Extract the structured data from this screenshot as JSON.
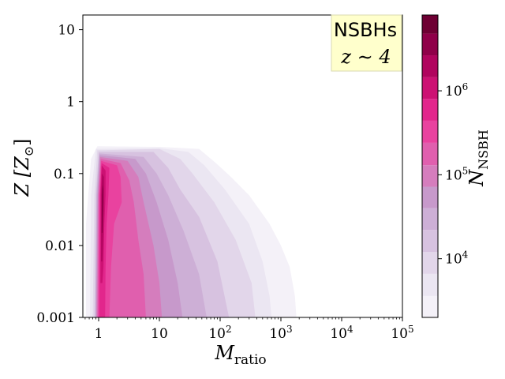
{
  "chart_data": {
    "type": "heatmap",
    "title": "",
    "xlabel": "M_ratio",
    "xlabel_base": "M",
    "xlabel_sub": "ratio",
    "ylabel": "Z [Z_⊙]",
    "ylabel_main": "Z [Z",
    "ylabel_sub": "⊙",
    "ylabel_close": "]",
    "xscale": "log",
    "yscale": "log",
    "xlim": [
      0.55,
      100000
    ],
    "ylim": [
      0.001,
      16
    ],
    "xticks": [
      {
        "value": 1,
        "label": "1"
      },
      {
        "value": 10,
        "label": "10"
      },
      {
        "value": 100,
        "label": "10^2",
        "base": "10",
        "exp": "2"
      },
      {
        "value": 1000,
        "label": "10^3",
        "base": "10",
        "exp": "3"
      },
      {
        "value": 10000,
        "label": "10^4",
        "base": "10",
        "exp": "4"
      },
      {
        "value": 100000,
        "label": "10^5",
        "base": "10",
        "exp": "5"
      }
    ],
    "yticks": [
      {
        "value": 10,
        "label": "10"
      },
      {
        "value": 1,
        "label": "1"
      },
      {
        "value": 0.1,
        "label": "0.1"
      },
      {
        "value": 0.01,
        "label": "0.01"
      },
      {
        "value": 0.001,
        "label": "0.001"
      }
    ],
    "annotation": {
      "line1": "NSBHs",
      "line2": "z ∼ 4"
    },
    "annotation_placement": "top-right",
    "grid": false,
    "colorbar": {
      "label": "N_NSBH",
      "label_base": "N",
      "label_sub": "NSBH",
      "scale": "log",
      "range": [
        2000,
        8000000
      ],
      "ticks": [
        {
          "value": 10000,
          "label": "10^4",
          "base": "10",
          "exp": "4"
        },
        {
          "value": 100000,
          "label": "10^5",
          "base": "10",
          "exp": "5"
        },
        {
          "value": 1000000,
          "label": "10^6",
          "base": "10",
          "exp": "6"
        }
      ],
      "levels": [
        {
          "value": 2000,
          "color": "#f4f1f8"
        },
        {
          "value": 3600,
          "color": "#ebe6f2"
        },
        {
          "value": 6600,
          "color": "#e2d6ea"
        },
        {
          "value": 12000,
          "color": "#d7c2e0"
        },
        {
          "value": 22000,
          "color": "#cdafd6"
        },
        {
          "value": 40000,
          "color": "#c799cb"
        },
        {
          "value": 72000,
          "color": "#d57dbd"
        },
        {
          "value": 130000,
          "color": "#e05fae"
        },
        {
          "value": 240000,
          "color": "#e9429f"
        },
        {
          "value": 440000,
          "color": "#e2268c"
        },
        {
          "value": 800000,
          "color": "#cc1173"
        },
        {
          "value": 1450000,
          "color": "#b0045e"
        },
        {
          "value": 2650000,
          "color": "#8f0049"
        },
        {
          "value": 4800000,
          "color": "#6e0033"
        }
      ]
    },
    "contours": [
      {
        "level": 0,
        "color": "#f4f1f8",
        "points": [
          [
            0.62,
            0.001
          ],
          [
            0.62,
            0.02
          ],
          [
            0.75,
            0.16
          ],
          [
            0.95,
            0.24
          ],
          [
            10,
            0.235
          ],
          [
            45,
            0.22
          ],
          [
            85,
            0.14
          ],
          [
            150,
            0.09
          ],
          [
            300,
            0.05
          ],
          [
            650,
            0.02
          ],
          [
            1000,
            0.01
          ],
          [
            1400,
            0.005
          ],
          [
            1700,
            0.002
          ],
          [
            1800,
            0.001
          ]
        ]
      },
      {
        "level": 1,
        "color": "#ebe6f2",
        "points": [
          [
            0.72,
            0.001
          ],
          [
            0.75,
            0.05
          ],
          [
            0.9,
            0.22
          ],
          [
            10,
            0.225
          ],
          [
            30,
            0.2
          ],
          [
            55,
            0.13
          ],
          [
            120,
            0.06
          ],
          [
            300,
            0.02
          ],
          [
            500,
            0.006
          ],
          [
            650,
            0.002
          ],
          [
            700,
            0.001
          ]
        ]
      },
      {
        "level": 2,
        "color": "#e2d6ea",
        "points": [
          [
            0.8,
            0.001
          ],
          [
            0.85,
            0.05
          ],
          [
            0.95,
            0.21
          ],
          [
            10,
            0.22
          ],
          [
            22,
            0.16
          ],
          [
            35,
            0.1
          ],
          [
            80,
            0.04
          ],
          [
            180,
            0.012
          ],
          [
            330,
            0.003
          ],
          [
            380,
            0.001
          ]
        ]
      },
      {
        "level": 3,
        "color": "#d7c2e0",
        "points": [
          [
            0.85,
            0.001
          ],
          [
            0.9,
            0.05
          ],
          [
            1.0,
            0.2
          ],
          [
            8,
            0.2
          ],
          [
            14,
            0.12
          ],
          [
            22,
            0.06
          ],
          [
            45,
            0.025
          ],
          [
            90,
            0.006
          ],
          [
            140,
            0.001
          ]
        ]
      },
      {
        "level": 4,
        "color": "#cdafd6",
        "points": [
          [
            0.88,
            0.001
          ],
          [
            0.92,
            0.05
          ],
          [
            1.02,
            0.19
          ],
          [
            5.5,
            0.17
          ],
          [
            9,
            0.1
          ],
          [
            14,
            0.05
          ],
          [
            25,
            0.016
          ],
          [
            45,
            0.004
          ],
          [
            60,
            0.001
          ]
        ]
      },
      {
        "level": 5,
        "color": "#c799cb",
        "points": [
          [
            0.9,
            0.001
          ],
          [
            0.95,
            0.05
          ],
          [
            1.04,
            0.18
          ],
          [
            4,
            0.16
          ],
          [
            6,
            0.1
          ],
          [
            9,
            0.04
          ],
          [
            14,
            0.012
          ],
          [
            20,
            0.003
          ],
          [
            24,
            0.001
          ]
        ]
      },
      {
        "level": 6,
        "color": "#d57dbd",
        "points": [
          [
            0.92,
            0.001
          ],
          [
            0.97,
            0.05
          ],
          [
            1.06,
            0.17
          ],
          [
            3,
            0.15
          ],
          [
            4.5,
            0.09
          ],
          [
            5.5,
            0.04
          ],
          [
            8,
            0.01
          ],
          [
            10,
            0.003
          ],
          [
            11,
            0.001
          ]
        ]
      },
      {
        "level": 7,
        "color": "#e05fae",
        "points": [
          [
            0.95,
            0.001
          ],
          [
            1.0,
            0.05
          ],
          [
            1.08,
            0.16
          ],
          [
            2.3,
            0.14
          ],
          [
            3.2,
            0.08
          ],
          [
            3.8,
            0.04
          ],
          [
            4.5,
            0.012
          ],
          [
            5.5,
            0.004
          ],
          [
            6,
            0.001
          ]
        ]
      },
      {
        "level": 8,
        "color": "#e9429f",
        "points": [
          [
            0.98,
            0.001
          ],
          [
            1.02,
            0.05
          ],
          [
            1.1,
            0.15
          ],
          [
            2,
            0.13
          ],
          [
            2.3,
            0.09
          ],
          [
            2.4,
            0.04
          ],
          [
            1.8,
            0.02
          ],
          [
            1.6,
            0.005
          ],
          [
            1.5,
            0.001
          ]
        ]
      },
      {
        "level": 9,
        "color": "#e2268c",
        "points": [
          [
            1.02,
            0.001
          ],
          [
            1.05,
            0.05
          ],
          [
            1.12,
            0.14
          ],
          [
            1.5,
            0.12
          ],
          [
            1.45,
            0.05
          ],
          [
            1.35,
            0.02
          ],
          [
            1.3,
            0.005
          ],
          [
            1.28,
            0.001
          ]
        ]
      },
      {
        "level": 10,
        "color": "#cc1173",
        "points": [
          [
            1.07,
            0.003
          ],
          [
            1.08,
            0.05
          ],
          [
            1.12,
            0.13
          ],
          [
            1.3,
            0.11
          ],
          [
            1.3,
            0.05
          ],
          [
            1.24,
            0.02
          ],
          [
            1.2,
            0.005
          ],
          [
            1.15,
            0.003
          ]
        ]
      },
      {
        "level": 11,
        "color": "#b0045e",
        "points": [
          [
            1.1,
            0.006
          ],
          [
            1.11,
            0.05
          ],
          [
            1.14,
            0.1
          ],
          [
            1.22,
            0.09
          ],
          [
            1.22,
            0.04
          ],
          [
            1.18,
            0.012
          ],
          [
            1.15,
            0.006
          ]
        ]
      },
      {
        "level": 12,
        "color": "#8f0049",
        "points": [
          [
            1.12,
            0.015
          ],
          [
            1.13,
            0.05
          ],
          [
            1.16,
            0.07
          ],
          [
            1.2,
            0.06
          ],
          [
            1.19,
            0.03
          ],
          [
            1.16,
            0.015
          ]
        ]
      }
    ]
  }
}
